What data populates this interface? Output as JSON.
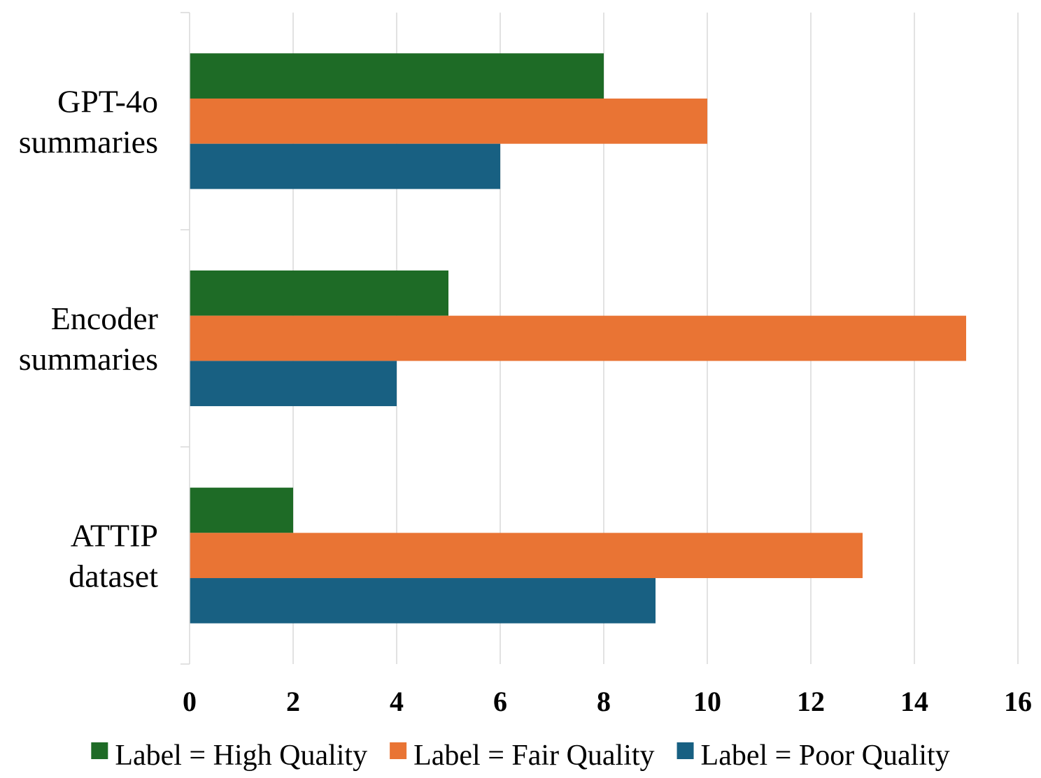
{
  "chart_data": {
    "type": "bar",
    "orientation": "horizontal",
    "title": "",
    "xlabel": "",
    "ylabel": "",
    "categories": [
      [
        "GPT-4o",
        "summaries"
      ],
      [
        "Encoder",
        "summaries"
      ],
      [
        "ATTIP",
        "dataset"
      ]
    ],
    "series": [
      {
        "name": "Label = High Quality",
        "color": "#1e6b26",
        "values": [
          8,
          5,
          2
        ]
      },
      {
        "name": "Label = Fair Quality",
        "color": "#e97434",
        "values": [
          10,
          15,
          13
        ]
      },
      {
        "name": "Label = Poor Quality",
        "color": "#186082",
        "values": [
          6,
          4,
          9
        ]
      }
    ],
    "xlim": [
      0,
      16
    ],
    "xticks": [
      0,
      2,
      4,
      6,
      8,
      10,
      12,
      14,
      16
    ],
    "grid": true,
    "legend_position": "bottom"
  }
}
